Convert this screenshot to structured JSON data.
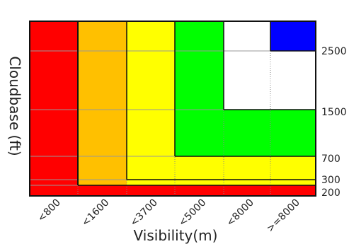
{
  "chart_data": {
    "type": "heatmap",
    "xlabel": "Visibility(m)",
    "ylabel": "Cloudbase (ft)",
    "x_tick_labels": [
      "<800",
      "<1600",
      "<3700",
      "<5000",
      "<8000",
      ">=8000"
    ],
    "y_tick_labels": [
      "200",
      "300",
      "700",
      "1500",
      "2500"
    ],
    "y_ticks": [
      200,
      300,
      700,
      1500,
      2500
    ],
    "colors": {
      "red": "#ff0000",
      "amber": "#ffc000",
      "yellow": "#ffff00",
      "green": "#00ff00",
      "white": "#ffffff",
      "blue": "#0000ff"
    },
    "cell_colors": [
      [
        "red",
        "red",
        "red",
        "red",
        "red",
        "red"
      ],
      [
        "red",
        "amber",
        "yellow",
        "yellow",
        "yellow",
        "yellow"
      ],
      [
        "red",
        "amber",
        "yellow",
        "yellow",
        "yellow",
        "yellow"
      ],
      [
        "red",
        "amber",
        "yellow",
        "green",
        "green",
        "green"
      ],
      [
        "red",
        "amber",
        "yellow",
        "green",
        "white",
        "white"
      ],
      [
        "red",
        "amber",
        "yellow",
        "green",
        "white",
        "blue"
      ]
    ]
  }
}
